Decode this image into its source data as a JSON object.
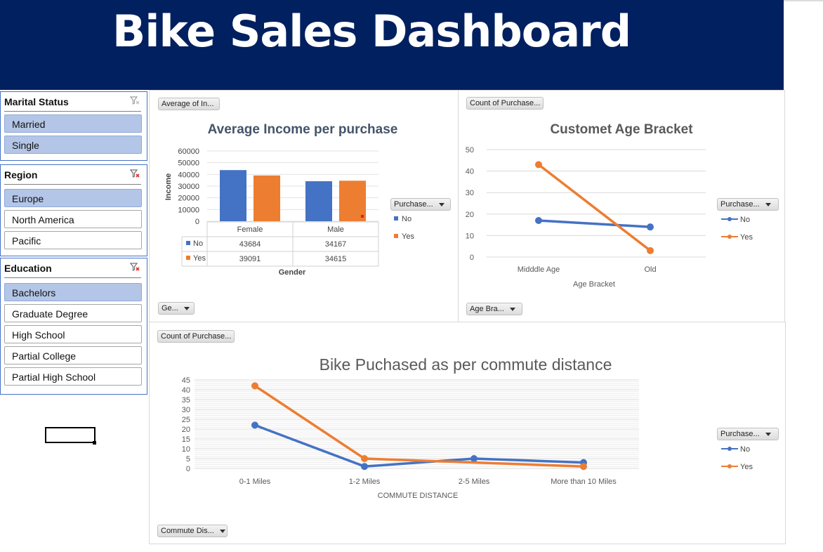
{
  "dashboard": {
    "title": "Bike Sales Dashboard"
  },
  "slicers": {
    "marital_status": {
      "title": "Marital Status",
      "items": [
        "Married",
        "Single"
      ],
      "selected": [
        0,
        1
      ]
    },
    "region": {
      "title": "Region",
      "items": [
        "Europe",
        "North America",
        "Pacific"
      ],
      "selected": [
        0
      ]
    },
    "education": {
      "title": "Education",
      "items": [
        "Bachelors",
        "Graduate Degree",
        "High School",
        "Partial College",
        "Partial High School"
      ],
      "selected": [
        0
      ]
    }
  },
  "icons": {
    "clear_filter": "clear-filter-icon",
    "dropdown": "chevron-down-icon"
  },
  "colors": {
    "banner": "#002060",
    "no": "#4472c4",
    "yes": "#ed7d31",
    "selected": "#b4c6e7"
  },
  "income_chart": {
    "field_button": "Average of In...",
    "legend_button": "Purchase...",
    "axis_button": "Ge...",
    "chart_data": {
      "type": "bar",
      "title": "Average Income per purchase",
      "xlabel": "Gender",
      "ylabel": "Income",
      "categories": [
        "Female",
        "Male"
      ],
      "series": [
        {
          "name": "No",
          "values": [
            43684,
            34167
          ],
          "labels": [
            "43684",
            "34167"
          ]
        },
        {
          "name": "Yes",
          "values": [
            39091,
            34615
          ],
          "labels": [
            "39091",
            "34615"
          ]
        }
      ],
      "ylim": [
        0,
        60000
      ],
      "yticks": [
        "60000",
        "50000",
        "40000",
        "30000",
        "20000",
        "10000",
        "0"
      ],
      "legend": "right",
      "grid": true
    }
  },
  "age_chart": {
    "field_button": "Count of Purchase...",
    "legend_button": "Purchase...",
    "axis_button": "Age Bra...",
    "chart_data": {
      "type": "line",
      "title": "Customet Age Bracket",
      "xlabel": "Age Bracket",
      "ylabel": "",
      "categories": [
        "Midddle Age",
        "Old"
      ],
      "series": [
        {
          "name": "No",
          "values": [
            17,
            14
          ]
        },
        {
          "name": "Yes",
          "values": [
            43,
            3
          ]
        }
      ],
      "ylim": [
        0,
        50
      ],
      "yticks": [
        "50",
        "40",
        "30",
        "20",
        "10",
        "0"
      ],
      "legend": "right",
      "grid": true
    }
  },
  "commute_chart": {
    "field_button": "Count of Purchase...",
    "legend_button": "Purchase...",
    "axis_button": "Commute Dis...",
    "chart_data": {
      "type": "line",
      "title": "Bike Puchased as per commute distance",
      "xlabel": "COMMUTE DISTANCE",
      "ylabel": "",
      "categories": [
        "0-1 Miles",
        "1-2 Miles",
        "2-5 Miles",
        "More than 10 Miles"
      ],
      "series": [
        {
          "name": "No",
          "values": [
            22,
            1,
            5,
            3
          ]
        },
        {
          "name": "Yes",
          "values": [
            42,
            5,
            null,
            1
          ]
        }
      ],
      "ylim": [
        0,
        45
      ],
      "yticks": [
        "45",
        "40",
        "35",
        "30",
        "25",
        "20",
        "15",
        "10",
        "5",
        "0"
      ],
      "legend": "right",
      "grid": true
    }
  }
}
